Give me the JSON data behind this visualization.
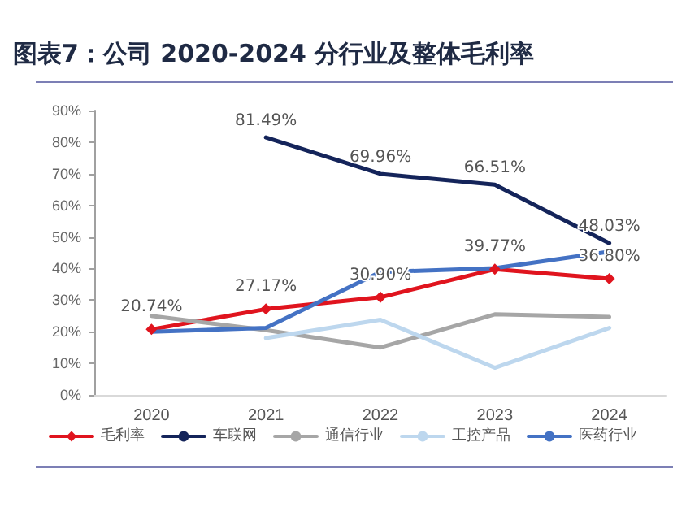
{
  "chart_data": {
    "type": "line",
    "title": "图表7：公司 2020-2024 分行业及整体毛利率",
    "categories": [
      "2020",
      "2021",
      "2022",
      "2023",
      "2024"
    ],
    "series": [
      {
        "name": "毛利率",
        "color": "#e0141e",
        "marker": "diamond",
        "values": [
          20.74,
          27.17,
          30.9,
          39.77,
          36.8
        ],
        "value_labels": [
          "20.74%",
          "27.17%",
          "30.90%",
          "39.77%",
          "36.80%"
        ]
      },
      {
        "name": "车联网",
        "color": "#14245a",
        "values": [
          null,
          81.49,
          69.96,
          66.51,
          48.03
        ],
        "value_labels": [
          null,
          "81.49%",
          "69.96%",
          "66.51%",
          "48.03%"
        ]
      },
      {
        "name": "通信行业",
        "color": "#a6a6a6",
        "values": [
          25,
          20.5,
          15,
          25.5,
          24.7
        ]
      },
      {
        "name": "工控产品",
        "color": "#bdd7ee",
        "values": [
          null,
          18,
          23.8,
          8.6,
          21.2
        ]
      },
      {
        "name": "医药行业",
        "color": "#4472c4",
        "values": [
          20,
          21.2,
          38.9,
          40.1,
          45.3
        ]
      }
    ],
    "ylim": [
      0,
      90
    ],
    "yticks": [
      {
        "value": 0,
        "label": "0%"
      },
      {
        "value": 10,
        "label": "10%"
      },
      {
        "value": 20,
        "label": "20%"
      },
      {
        "value": 30,
        "label": "30%"
      },
      {
        "value": 40,
        "label": "40%"
      },
      {
        "value": 50,
        "label": "50%"
      },
      {
        "value": 60,
        "label": "60%"
      },
      {
        "value": 70,
        "label": "70%"
      },
      {
        "value": 80,
        "label": "80%"
      },
      {
        "value": 90,
        "label": "90%"
      }
    ],
    "grid": false,
    "legend": "bottom",
    "line_style": "solid"
  }
}
